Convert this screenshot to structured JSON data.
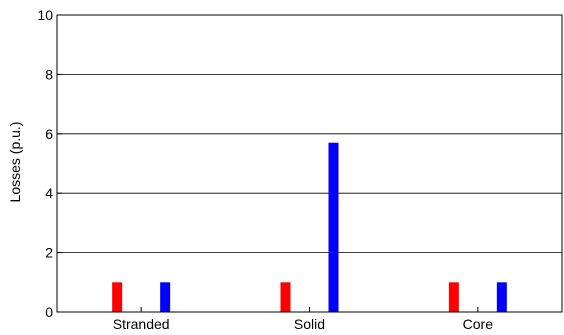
{
  "chart_data": {
    "type": "bar",
    "title": "",
    "xlabel": "",
    "ylabel": "Losses (p.u.)",
    "categories": [
      "Stranded",
      "Solid",
      "Core"
    ],
    "series": [
      {
        "color": "#ff0000",
        "values": [
          1.0,
          1.0,
          1.0
        ]
      },
      {
        "color": "#0000ff",
        "values": [
          1.0,
          5.7,
          1.0
        ]
      }
    ],
    "ylim": [
      0,
      10
    ],
    "yticks": [
      "0",
      "2",
      "4",
      "6",
      "8",
      "10"
    ],
    "grid": "horizontal"
  }
}
